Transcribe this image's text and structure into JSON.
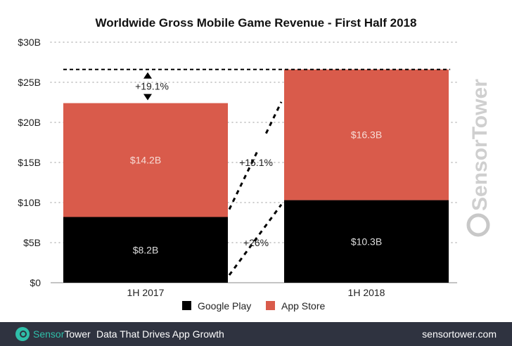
{
  "chart_data": {
    "type": "bar",
    "stacked": true,
    "title": "Worldwide Gross Mobile Game Revenue - First Half 2018",
    "categories": [
      "1H 2017",
      "1H 2018"
    ],
    "series": [
      {
        "name": "Google Play",
        "values": [
          8.2,
          10.3
        ],
        "labels": [
          "$8.2B",
          "$10.3B"
        ],
        "color": "#000000"
      },
      {
        "name": "App Store",
        "values": [
          14.2,
          16.3
        ],
        "labels": [
          "$14.2B",
          "$16.3B"
        ],
        "color": "#d95b4b"
      }
    ],
    "yticks": [
      "$0",
      "$5B",
      "$10B",
      "$15B",
      "$20B",
      "$25B",
      "$30B"
    ],
    "ytick_values": [
      0,
      5,
      10,
      15,
      20,
      25,
      30
    ],
    "ylim": [
      0,
      30
    ],
    "grid": true,
    "legend": "bottom",
    "annotations": {
      "total_growth": "+19.1%",
      "app_store_growth": "+15.1%",
      "google_play_growth": "+26%"
    }
  },
  "watermark": "SensorTower",
  "footer": {
    "brand_a": "Sensor",
    "brand_b": "Tower",
    "tagline": "Data That Drives App Growth",
    "url": "sensortower.com"
  }
}
